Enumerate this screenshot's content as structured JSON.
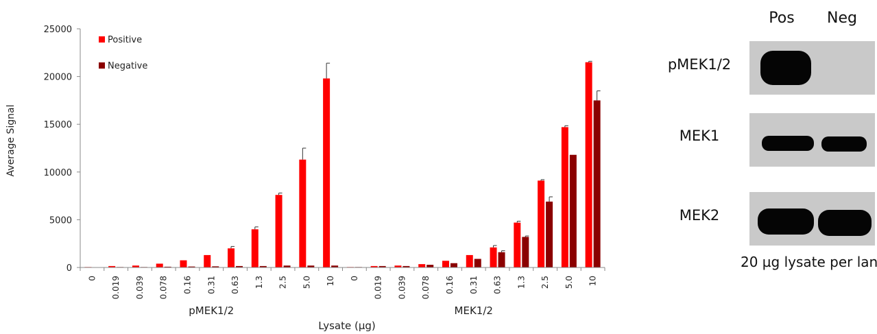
{
  "chart_data": {
    "type": "bar",
    "ylabel": "Average Signal",
    "xlabel": "Lysate (µg)",
    "ylim": [
      0,
      25000
    ],
    "yticks": [
      0,
      5000,
      10000,
      15000,
      20000,
      25000
    ],
    "legend_position": "top-left",
    "groups": [
      {
        "label": "pMEK1/2",
        "categories": [
          "0",
          "0.019",
          "0.039",
          "0.078",
          "0.16",
          "0.31",
          "0.63",
          "1.3",
          "2.5",
          "5.0",
          "10"
        ]
      },
      {
        "label": "MEK1/2",
        "categories": [
          "0",
          "0.019",
          "0.039",
          "0.078",
          "0.16",
          "0.31",
          "0.63",
          "1.3",
          "2.5",
          "5.0",
          "10"
        ]
      }
    ],
    "series": [
      {
        "name": "Positive",
        "color": "#ff0000",
        "values": [
          50,
          150,
          200,
          400,
          750,
          1300,
          2000,
          4000,
          7600,
          11300,
          19800,
          50,
          150,
          200,
          350,
          700,
          1300,
          2100,
          4700,
          9100,
          14700,
          21500
        ],
        "errors": [
          0,
          0,
          0,
          0,
          0,
          0,
          200,
          250,
          200,
          1200,
          1600,
          0,
          0,
          0,
          0,
          0,
          0,
          200,
          150,
          100,
          150,
          100
        ]
      },
      {
        "name": "Negative",
        "color": "#8b0000",
        "values": [
          30,
          50,
          50,
          80,
          100,
          120,
          150,
          150,
          200,
          200,
          200,
          50,
          150,
          150,
          280,
          450,
          900,
          1600,
          3200,
          6900,
          11800,
          17500
        ],
        "errors": [
          0,
          0,
          0,
          0,
          0,
          0,
          0,
          0,
          0,
          0,
          0,
          0,
          0,
          0,
          0,
          0,
          0,
          150,
          100,
          500,
          0,
          1000
        ]
      }
    ]
  },
  "blot": {
    "lanes": [
      "Pos",
      "Neg"
    ],
    "rows": [
      "pMEK1/2",
      "MEK1",
      "MEK2"
    ],
    "caption": "20 µg lysate per lane"
  }
}
